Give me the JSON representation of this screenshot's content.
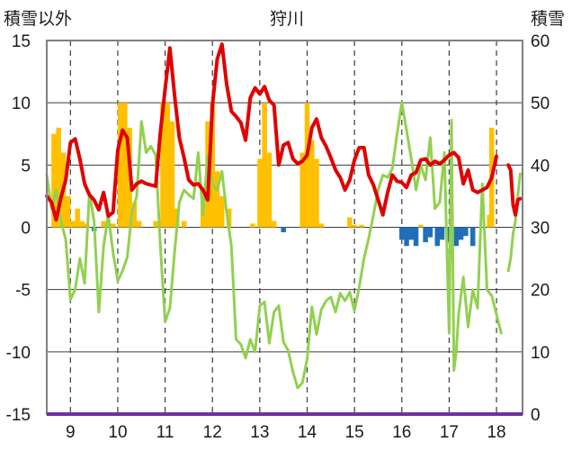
{
  "chart_data": {
    "type": "line",
    "title": "狩川",
    "ylabel_left": "積雪以外",
    "ylabel_right": "積雪",
    "x_range": [
      8.5,
      18.55
    ],
    "ylim_left": [
      -15,
      15
    ],
    "ylim_right": [
      0,
      60
    ],
    "left_ticks": [
      "15",
      "10",
      "5",
      "0",
      "-5",
      "-10",
      "-15"
    ],
    "right_ticks": [
      "60",
      "50",
      "40",
      "30",
      "20",
      "10",
      "0"
    ],
    "x_ticks": [
      "9",
      "10",
      "11",
      "12",
      "13",
      "14",
      "15",
      "16",
      "17",
      "18"
    ],
    "grid": true,
    "legend": "none",
    "colors": {
      "red_series": "#e00000",
      "green_series": "#92d050",
      "positive_bars": "#ffc000",
      "negative_bars": "#1f6fb8",
      "baseline": "#7030a0",
      "frame": "#808080",
      "grid": "#3a3a3a"
    },
    "series": [
      {
        "axis": "left",
        "color": "#e00000",
        "x": [
          8.5,
          8.6,
          8.7,
          8.8,
          8.9,
          9.0,
          9.1,
          9.2,
          9.3,
          9.4,
          9.5,
          9.6,
          9.7,
          9.8,
          9.9,
          10.0,
          10.1,
          10.2,
          10.3,
          10.4,
          10.5,
          10.6,
          10.7,
          10.8,
          10.9,
          11.0,
          11.1,
          11.2,
          11.3,
          11.4,
          11.5,
          11.6,
          11.7,
          11.8,
          11.9,
          12.0,
          12.1,
          12.2,
          12.3,
          12.4,
          12.5,
          12.6,
          12.7,
          12.8,
          12.9,
          13.0,
          13.1,
          13.2,
          13.3,
          13.4,
          13.5,
          13.6,
          13.7,
          13.8,
          13.9,
          14.0,
          14.1,
          14.2,
          14.3,
          14.4,
          14.5,
          14.6,
          14.7,
          14.8,
          14.9,
          15.0,
          15.1,
          15.2,
          15.3,
          15.4,
          15.5,
          15.6,
          15.7,
          15.8,
          15.9,
          16.0,
          16.1,
          16.2,
          16.3,
          16.4,
          16.5,
          16.6,
          16.7,
          16.8,
          16.9,
          17.0,
          17.1,
          17.2,
          17.3,
          17.4,
          17.5,
          17.6,
          17.7,
          17.8,
          17.9,
          18.0,
          18.1,
          18.2,
          18.25,
          18.3,
          18.35,
          18.4,
          18.45,
          18.5
        ],
        "y": [
          2.5,
          2.0,
          0.6,
          2.4,
          3.8,
          6.8,
          7.1,
          5.5,
          3.5,
          2.6,
          2.2,
          1.4,
          2.8,
          0.9,
          1.2,
          6.2,
          7.8,
          7.2,
          3.0,
          3.5,
          3.7,
          3.5,
          3.4,
          3.3,
          7.6,
          11.1,
          14.4,
          10.6,
          7.2,
          5.6,
          3.8,
          3.4,
          3.5,
          3.0,
          2.2,
          9.8,
          13.5,
          14.7,
          11.5,
          9.3,
          8.9,
          8.4,
          7.0,
          10.4,
          11.2,
          10.7,
          11.3,
          10.2,
          9.8,
          5.0,
          6.6,
          6.8,
          5.5,
          5.1,
          5.3,
          5.8,
          8.0,
          8.7,
          7.2,
          6.5,
          5.6,
          4.6,
          4.0,
          3.0,
          3.8,
          5.4,
          6.4,
          6.4,
          4.2,
          3.4,
          2.2,
          1.0,
          2.8,
          4.2,
          3.7,
          3.6,
          3.2,
          4.2,
          4.4,
          5.4,
          5.5,
          5.0,
          5.3,
          5.1,
          5.4,
          5.8,
          6.0,
          5.6,
          3.5,
          4.6,
          3.0,
          2.8,
          3.0,
          3.2,
          4.0,
          5.7,
          null,
          null,
          5.0,
          4.6,
          1.8,
          1.0,
          2.2,
          2.3
        ]
      },
      {
        "axis": "left",
        "color": "#92d050",
        "x": [
          8.5,
          8.6,
          8.7,
          8.8,
          8.9,
          9.0,
          9.1,
          9.2,
          9.3,
          9.4,
          9.5,
          9.6,
          9.7,
          9.8,
          9.9,
          10.0,
          10.1,
          10.2,
          10.3,
          10.4,
          10.5,
          10.6,
          10.7,
          10.8,
          10.9,
          11.0,
          11.1,
          11.2,
          11.3,
          11.4,
          11.5,
          11.6,
          11.7,
          11.8,
          11.9,
          12.0,
          12.1,
          12.2,
          12.3,
          12.4,
          12.5,
          12.6,
          12.7,
          12.8,
          12.9,
          13.0,
          13.1,
          13.2,
          13.3,
          13.4,
          13.5,
          13.6,
          13.7,
          13.8,
          13.9,
          14.0,
          14.1,
          14.2,
          14.3,
          14.4,
          14.5,
          14.6,
          14.7,
          14.8,
          14.9,
          15.0,
          15.1,
          15.2,
          15.3,
          15.4,
          15.5,
          15.6,
          15.7,
          15.8,
          15.9,
          16.0,
          16.1,
          16.2,
          16.3,
          16.4,
          16.5,
          16.6,
          16.7,
          16.8,
          16.9,
          17.0,
          17.05,
          17.1,
          17.15,
          17.2,
          17.3,
          17.4,
          17.5,
          17.6,
          17.7,
          17.8,
          17.9,
          18.0,
          18.1,
          18.2,
          18.25,
          18.3,
          18.35,
          18.4,
          18.45,
          18.5
        ],
        "y": [
          4.2,
          1.5,
          3.0,
          0.5,
          -1.0,
          -5.8,
          -5.0,
          -2.5,
          -4.5,
          2.8,
          0.5,
          -6.8,
          -1.5,
          1.0,
          -2.0,
          -4.3,
          -3.5,
          -2.4,
          1.2,
          2.5,
          8.5,
          6.0,
          6.5,
          5.8,
          -1.5,
          -7.6,
          -6.5,
          -2.0,
          2.0,
          3.0,
          2.6,
          2.3,
          6.0,
          1.0,
          5.8,
          3.4,
          3.0,
          4.5,
          1.2,
          -1.5,
          -9.0,
          -9.4,
          -10.5,
          -9.0,
          -10.0,
          -6.3,
          -6.0,
          -9.3,
          -6.8,
          -6.3,
          -9.2,
          -9.9,
          -11.6,
          -12.9,
          -12.5,
          -10.6,
          -6.4,
          -8.6,
          -6.6,
          -5.9,
          -5.6,
          -6.8,
          -5.3,
          -5.9,
          -5.2,
          -6.7,
          -4.8,
          -2.5,
          -0.9,
          1.0,
          3.0,
          4.2,
          4.0,
          4.7,
          7.5,
          10.0,
          7.8,
          5.5,
          3.0,
          5.0,
          3.8,
          7.2,
          1.5,
          2.0,
          6.0,
          -8.5,
          8.6,
          -11.5,
          -10.0,
          -7.0,
          -4.0,
          -8.0,
          -5.0,
          -6.5,
          3.5,
          -5.0,
          -5.5,
          -7.0,
          -8.5,
          null,
          -3.5,
          -2.5,
          -0.5,
          0.5,
          2.5,
          4.3
        ]
      }
    ],
    "bars": {
      "axis": "left",
      "positive_color": "#ffc000",
      "negative_color": "#1f6fb8",
      "x": [
        8.65,
        8.75,
        8.85,
        8.95,
        9.05,
        9.15,
        9.25,
        9.35,
        9.5,
        9.7,
        9.9,
        10.05,
        10.15,
        10.25,
        10.35,
        10.45,
        10.6,
        10.8,
        10.95,
        11.05,
        11.15,
        11.25,
        11.4,
        11.6,
        11.8,
        11.9,
        12.0,
        12.1,
        12.2,
        12.35,
        12.5,
        12.7,
        12.85,
        13.0,
        13.1,
        13.2,
        13.3,
        13.5,
        13.7,
        13.9,
        14.0,
        14.1,
        14.2,
        14.3,
        14.4,
        14.5,
        14.9,
        15.0,
        15.15,
        15.3,
        15.5,
        15.7,
        15.9,
        16.0,
        16.1,
        16.2,
        16.3,
        16.4,
        16.5,
        16.6,
        16.75,
        16.85,
        17.0,
        17.15,
        17.25,
        17.35,
        17.5,
        17.65,
        17.85,
        17.9
      ],
      "values": [
        7.5,
        8.0,
        6.0,
        2.5,
        0.5,
        1.5,
        0.5,
        0.3,
        -0.3,
        0.5,
        0.3,
        10.0,
        10.0,
        8.0,
        2.0,
        0.5,
        0.0,
        0.5,
        10.0,
        10.0,
        8.5,
        1.5,
        0.5,
        0.0,
        2.5,
        8.5,
        10.0,
        4.5,
        2.5,
        1.5,
        0.0,
        0.0,
        0.3,
        5.5,
        10.0,
        6.0,
        0.5,
        -0.4,
        0.0,
        6.0,
        10.0,
        7.0,
        5.5,
        0.3,
        0.0,
        0.0,
        0.8,
        0.2,
        0.2,
        0.0,
        0.0,
        0.0,
        0.0,
        -1.0,
        -1.5,
        -1.0,
        -1.5,
        0.2,
        -1.2,
        -0.8,
        -1.5,
        -1.0,
        -1.2,
        -1.5,
        -1.0,
        -0.7,
        -1.5,
        0.0,
        1.0,
        8.0
      ]
    },
    "baseline": {
      "axis": "left",
      "value": -15,
      "color": "#7030a0"
    }
  }
}
